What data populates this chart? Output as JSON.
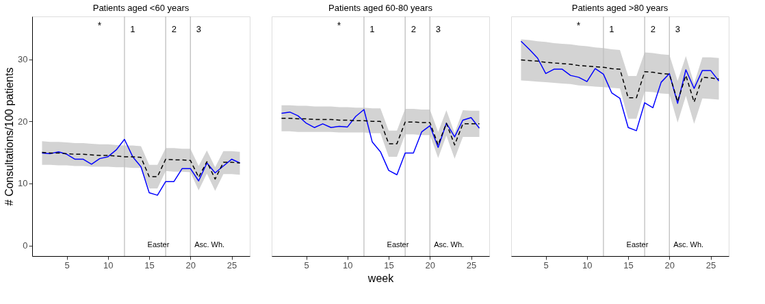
{
  "chart_data": [
    {
      "type": "line",
      "title": "Patients aged <60 years",
      "ylabel": "# Consultations/100 patients",
      "x": [
        2,
        3,
        4,
        5,
        6,
        7,
        8,
        9,
        10,
        11,
        12,
        13,
        14,
        15,
        16,
        17,
        18,
        19,
        20,
        21,
        22,
        23,
        24,
        25,
        26
      ],
      "xlim": [
        0.8,
        27.2
      ],
      "xticks": [
        5,
        10,
        15,
        20,
        25
      ],
      "ylim": [
        -1.7,
        36.9
      ],
      "yticks": [
        0,
        10,
        20,
        30
      ],
      "grid": false,
      "series": [
        {
          "color": "#0000ff",
          "line_style": "solid",
          "values": [
            14.9,
            14.8,
            15.1,
            14.7,
            13.9,
            13.9,
            13.1,
            14.0,
            14.3,
            15.4,
            17.1,
            14.3,
            12.7,
            8.5,
            8.1,
            10.3,
            10.3,
            12.4,
            12.4,
            10.4,
            13.3,
            11.7,
            12.8,
            13.9,
            13.3
          ]
        },
        {
          "color": "#000000",
          "line_style": "dashed",
          "values": [
            15.0,
            14.9,
            14.9,
            14.8,
            14.7,
            14.7,
            14.6,
            14.5,
            14.5,
            14.4,
            14.3,
            14.3,
            14.2,
            11.1,
            11.1,
            13.9,
            13.8,
            13.8,
            13.7,
            11.0,
            13.5,
            10.7,
            13.4,
            13.4,
            13.3
          ],
          "upper": [
            16.8,
            16.7,
            16.7,
            16.6,
            16.5,
            16.5,
            16.4,
            16.3,
            16.3,
            16.2,
            16.1,
            16.1,
            16.0,
            13.0,
            13.0,
            15.7,
            15.7,
            15.6,
            15.6,
            12.8,
            15.3,
            12.6,
            15.2,
            15.2,
            15.1
          ],
          "lower": [
            13.0,
            13.0,
            12.9,
            12.9,
            12.8,
            12.8,
            12.7,
            12.7,
            12.7,
            12.6,
            12.6,
            12.5,
            12.5,
            9.2,
            9.2,
            12.0,
            11.9,
            11.9,
            11.8,
            8.9,
            11.6,
            8.8,
            11.5,
            11.5,
            11.4
          ]
        }
      ],
      "ref_lines": [
        {
          "axis": "x",
          "value": 12,
          "color": "#bebebe"
        },
        {
          "axis": "x",
          "value": 17,
          "color": "#bebebe"
        },
        {
          "axis": "x",
          "value": 20,
          "color": "#bebebe"
        }
      ],
      "annotations": [
        "*",
        "1",
        "2",
        "3",
        "Easter",
        "Asc. Wh."
      ]
    },
    {
      "type": "line",
      "title": "Patients aged 60-80 years",
      "xlabel": "week",
      "x": [
        2,
        3,
        4,
        5,
        6,
        7,
        8,
        9,
        10,
        11,
        12,
        13,
        14,
        15,
        16,
        17,
        18,
        19,
        20,
        21,
        22,
        23,
        24,
        25,
        26
      ],
      "xlim": [
        0.8,
        27.2
      ],
      "xticks": [
        5,
        10,
        15,
        20,
        25
      ],
      "ylim": [
        -1.7,
        36.9
      ],
      "tick_labels": "x",
      "grid": false,
      "series": [
        {
          "color": "#0000ff",
          "line_style": "solid",
          "values": [
            21.3,
            21.5,
            20.9,
            19.7,
            19.0,
            19.6,
            19.0,
            19.2,
            19.1,
            20.8,
            21.9,
            16.7,
            15.1,
            12.1,
            11.4,
            14.9,
            14.9,
            18.3,
            19.3,
            15.8,
            19.7,
            17.5,
            20.2,
            20.6,
            18.9
          ]
        },
        {
          "color": "#000000",
          "line_style": "dashed",
          "values": [
            20.5,
            20.5,
            20.4,
            20.4,
            20.3,
            20.3,
            20.3,
            20.2,
            20.2,
            20.1,
            20.1,
            20.0,
            20.0,
            16.4,
            16.4,
            19.9,
            19.9,
            19.8,
            19.8,
            16.2,
            19.7,
            16.2,
            19.6,
            19.6,
            19.6
          ],
          "upper": [
            22.6,
            22.6,
            22.5,
            22.5,
            22.4,
            22.4,
            22.4,
            22.3,
            22.3,
            22.2,
            22.2,
            22.1,
            22.1,
            18.5,
            18.5,
            22.0,
            22.0,
            21.9,
            21.9,
            18.3,
            21.8,
            18.1,
            21.8,
            21.7,
            21.7
          ],
          "lower": [
            18.4,
            18.4,
            18.3,
            18.3,
            18.3,
            18.3,
            18.3,
            18.2,
            18.2,
            18.2,
            18.2,
            18.1,
            18.1,
            14.3,
            14.3,
            17.9,
            17.9,
            17.8,
            17.8,
            14.1,
            17.7,
            14.0,
            17.5,
            17.5,
            17.5
          ]
        }
      ],
      "ref_lines": [
        {
          "axis": "x",
          "value": 12,
          "color": "#bebebe"
        },
        {
          "axis": "x",
          "value": 17,
          "color": "#bebebe"
        },
        {
          "axis": "x",
          "value": 20,
          "color": "#bebebe"
        }
      ],
      "annotations": [
        "*",
        "1",
        "2",
        "3",
        "Easter",
        "Asc. Wh."
      ]
    },
    {
      "type": "line",
      "title": "Patients aged >80 years",
      "x": [
        2,
        3,
        4,
        5,
        6,
        7,
        8,
        9,
        10,
        11,
        12,
        13,
        14,
        15,
        16,
        17,
        18,
        19,
        20,
        21,
        22,
        23,
        24,
        25,
        26
      ],
      "xlim": [
        0.8,
        27.2
      ],
      "xticks": [
        5,
        10,
        15,
        20,
        25
      ],
      "ylim": [
        -1.7,
        36.9
      ],
      "tick_labels": "x",
      "grid": false,
      "series": [
        {
          "color": "#0000ff",
          "line_style": "solid",
          "values": [
            32.9,
            31.6,
            30.2,
            27.7,
            28.4,
            28.4,
            27.4,
            27.1,
            26.4,
            28.5,
            27.6,
            24.6,
            23.7,
            19.0,
            18.5,
            23.0,
            22.2,
            26.3,
            27.7,
            22.9,
            28.3,
            25.3,
            28.2,
            28.2,
            26.5
          ]
        },
        {
          "color": "#000000",
          "line_style": "dashed",
          "values": [
            29.9,
            29.8,
            29.7,
            29.5,
            29.4,
            29.3,
            29.2,
            29.0,
            28.9,
            28.8,
            28.7,
            28.5,
            28.4,
            23.8,
            23.8,
            28.0,
            27.9,
            27.7,
            27.6,
            23.2,
            27.4,
            23.1,
            27.1,
            27.0,
            26.8
          ],
          "upper": [
            33.2,
            33.1,
            32.9,
            32.8,
            32.6,
            32.5,
            32.4,
            32.2,
            32.1,
            31.9,
            31.8,
            31.6,
            31.5,
            27.3,
            27.3,
            31.1,
            31.0,
            30.8,
            30.7,
            26.5,
            30.5,
            26.1,
            30.3,
            30.3,
            30.2
          ],
          "lower": [
            26.6,
            26.5,
            26.4,
            26.3,
            26.2,
            26.1,
            26.0,
            25.8,
            25.7,
            25.6,
            25.5,
            25.4,
            25.3,
            20.4,
            20.4,
            24.8,
            24.7,
            24.5,
            24.4,
            19.8,
            24.1,
            19.6,
            23.7,
            23.6,
            23.5
          ]
        }
      ],
      "ref_lines": [
        {
          "axis": "x",
          "value": 12,
          "color": "#bebebe"
        },
        {
          "axis": "x",
          "value": 17,
          "color": "#bebebe"
        },
        {
          "axis": "x",
          "value": 20,
          "color": "#bebebe"
        }
      ],
      "annotations": [
        "*",
        "1",
        "2",
        "3",
        "Easter",
        "Asc. Wh."
      ]
    }
  ]
}
